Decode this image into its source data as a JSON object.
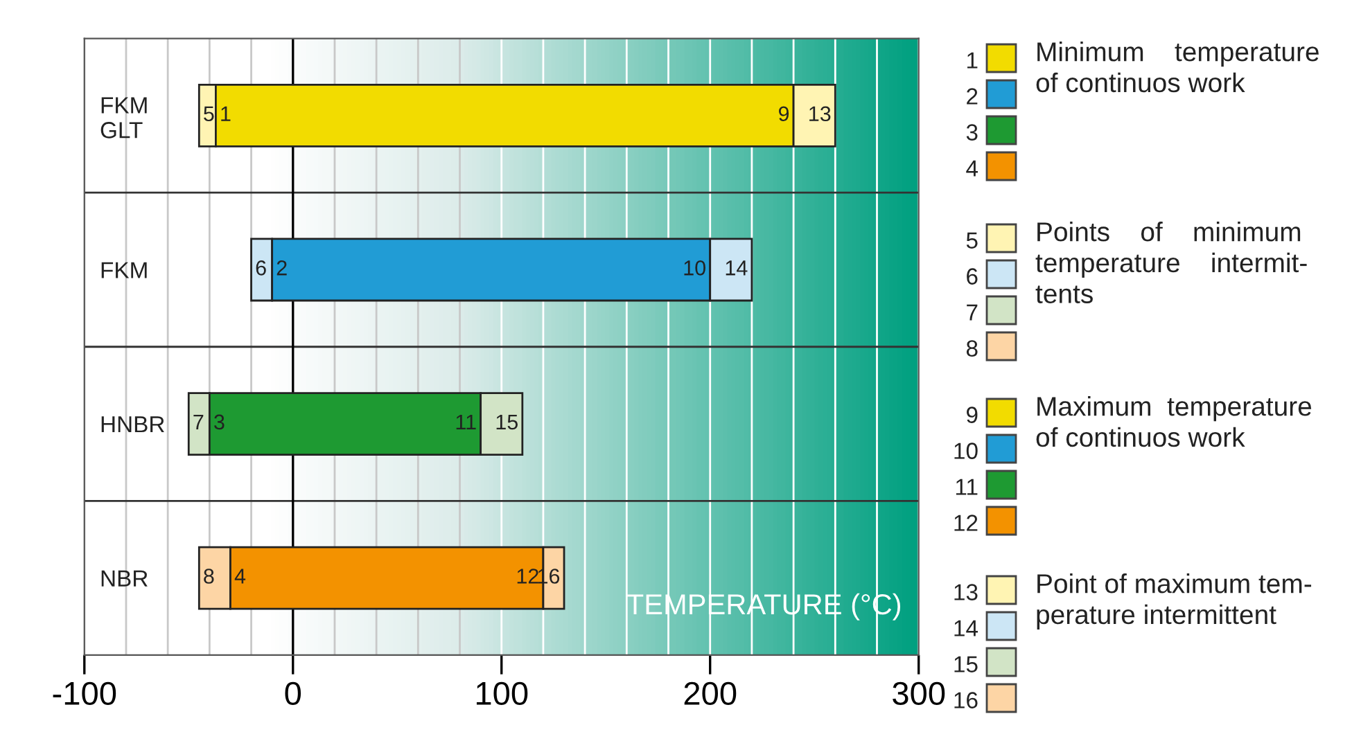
{
  "chart_data": {
    "type": "bar",
    "orientation": "horizontal",
    "xlabel": "TEMPERATURE (°C)",
    "categories": [
      "FKM\nGLT",
      "FKM",
      "HNBR",
      "NBR"
    ],
    "series": [
      {
        "colors": [
          "#fff4b3",
          "#cce6f5",
          "#d2e4c6",
          "#fdd5a5"
        ],
        "base": [
          -45,
          -20,
          -50,
          -45
        ],
        "values": [
          8,
          10,
          10,
          15
        ]
      },
      {
        "colors": [
          "#f2dc00",
          "#219cd5",
          "#1e9a32",
          "#f39200"
        ],
        "base": [
          -37,
          -10,
          -40,
          -30
        ],
        "values": [
          277,
          210,
          130,
          150
        ]
      },
      {
        "colors": [
          "#fff4b3",
          "#cce6f5",
          "#d2e4c6",
          "#fdd5a5"
        ],
        "base": [
          240,
          200,
          90,
          120
        ],
        "values": [
          20,
          20,
          20,
          10
        ]
      }
    ],
    "xlim": [
      -100,
      300
    ],
    "xticks": [
      -100,
      {
        "value": -80,
        "label": null
      },
      {
        "value": -60,
        "label": null
      },
      {
        "value": -40,
        "label": null
      },
      {
        "value": -20,
        "label": null
      },
      0,
      {
        "value": 20,
        "label": null
      },
      {
        "value": 40,
        "label": null
      },
      {
        "value": 60,
        "label": null
      },
      {
        "value": 80,
        "label": null
      },
      100,
      {
        "value": 120,
        "label": null
      },
      {
        "value": 140,
        "label": null
      },
      {
        "value": 160,
        "label": null
      },
      {
        "value": 180,
        "label": null
      },
      200,
      {
        "value": 220,
        "label": null
      },
      {
        "value": 240,
        "label": null
      },
      {
        "value": 260,
        "label": null
      },
      {
        "value": 280,
        "label": null
      },
      300
    ],
    "grid": "x",
    "ref_lines": [
      {
        "axis": "x",
        "value": 0,
        "color": "#000000"
      }
    ],
    "annotations": [
      {
        "text": "1",
        "x": -37,
        "y": "FKM\nGLT"
      },
      {
        "text": "2",
        "x": -10,
        "y": "FKM"
      },
      {
        "text": "3",
        "x": -40,
        "y": "HNBR"
      },
      {
        "text": "4",
        "x": -30,
        "y": "NBR"
      },
      {
        "text": "5",
        "x": -45,
        "y": "FKM\nGLT"
      },
      {
        "text": "6",
        "x": -20,
        "y": "FKM"
      },
      {
        "text": "7",
        "x": -50,
        "y": "HNBR"
      },
      {
        "text": "8",
        "x": -45,
        "y": "NBR"
      },
      {
        "text": "9",
        "x": 240,
        "y": "FKM\nGLT"
      },
      {
        "text": "10",
        "x": 200,
        "y": "FKM"
      },
      {
        "text": "11",
        "x": 90,
        "y": "HNBR"
      },
      {
        "text": "12",
        "x": 120,
        "y": "NBR"
      },
      {
        "text": "13",
        "x": 260,
        "y": "FKM\nGLT"
      },
      {
        "text": "14",
        "x": 220,
        "y": "FKM"
      },
      {
        "text": "15",
        "x": 110,
        "y": "HNBR"
      },
      {
        "text": "16",
        "x": 130,
        "y": "NBR"
      },
      "Minimum    temperature\nof continuos work",
      "Points    of    minimum\ntemperature    intermit-\ntents",
      "Maximum  temperature\nof continuos work",
      "Point of maximum tem-\nperature intermittent"
    ]
  }
}
